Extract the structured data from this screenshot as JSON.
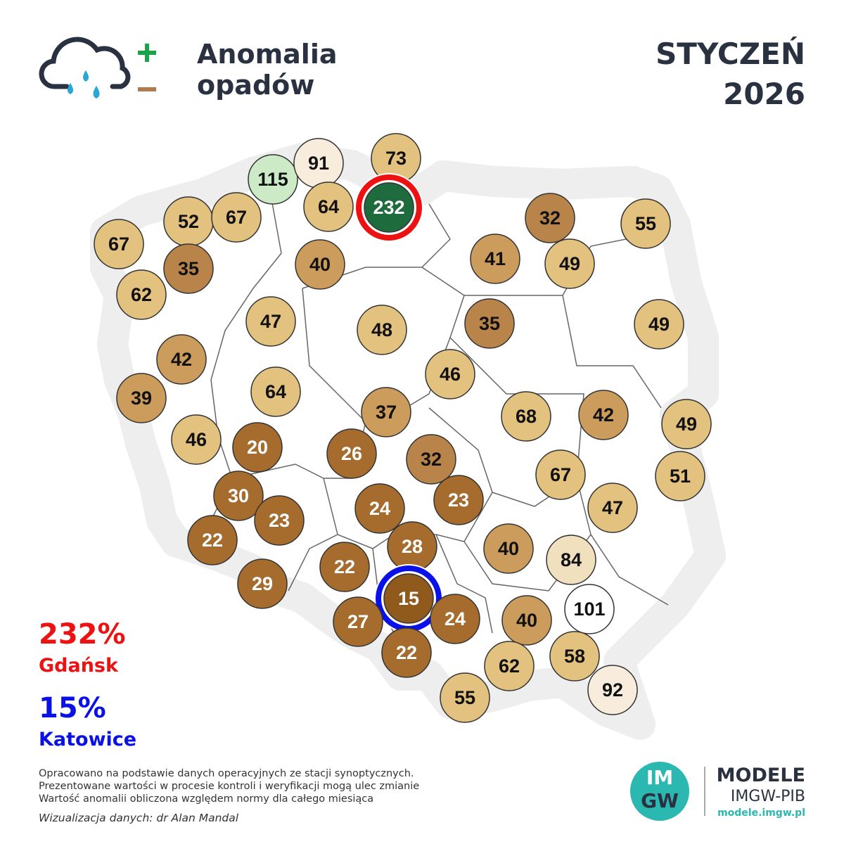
{
  "header": {
    "title_lines": [
      "Anomalia",
      "opadów"
    ],
    "month": "STYCZEŃ",
    "year": "2026"
  },
  "stations": [
    {
      "value": 115
    },
    {
      "value": 91
    },
    {
      "value": 73
    },
    {
      "value": 64
    },
    {
      "value": 232
    },
    {
      "value": 52
    },
    {
      "value": 67
    },
    {
      "value": 67
    },
    {
      "value": 35
    },
    {
      "value": 62
    },
    {
      "value": 40
    },
    {
      "value": 32
    },
    {
      "value": 55
    },
    {
      "value": 41
    },
    {
      "value": 49
    },
    {
      "value": 47
    },
    {
      "value": 48
    },
    {
      "value": 35
    },
    {
      "value": 49
    },
    {
      "value": 42
    },
    {
      "value": 46
    },
    {
      "value": 39
    },
    {
      "value": 64
    },
    {
      "value": 37
    },
    {
      "value": 68
    },
    {
      "value": 42
    },
    {
      "value": 49
    },
    {
      "value": 46
    },
    {
      "value": 20
    },
    {
      "value": 26
    },
    {
      "value": 32
    },
    {
      "value": 67
    },
    {
      "value": 51
    },
    {
      "value": 30
    },
    {
      "value": 23
    },
    {
      "value": 24
    },
    {
      "value": 23
    },
    {
      "value": 47
    },
    {
      "value": 22
    },
    {
      "value": 28
    },
    {
      "value": 40
    },
    {
      "value": 84
    },
    {
      "value": 22
    },
    {
      "value": 29
    },
    {
      "value": 15
    },
    {
      "value": 24
    },
    {
      "value": 27
    },
    {
      "value": 40
    },
    {
      "value": 101
    },
    {
      "value": 22
    },
    {
      "value": 62
    },
    {
      "value": 58
    },
    {
      "value": 92
    },
    {
      "value": 55
    }
  ],
  "highlights": [
    {
      "value": 232,
      "label": "232%",
      "city": "Gdańsk",
      "color": "#ee1111"
    },
    {
      "value": 15,
      "label": "15%",
      "city": "Katowice",
      "color": "#0a10e8"
    }
  ],
  "footer": {
    "notes": [
      "Opracowano na podstawie danych operacyjnych ze stacji synoptycznych.",
      "Prezentowane wartości w procesie kontroli i weryfikacji mogą ulec zmianie",
      "Wartość anomalii obliczona względem normy dla całego miesiąca"
    ],
    "credit": "Wizualizacja danych: dr Alan Mandal"
  },
  "logo": {
    "mark": [
      "IM",
      "GW"
    ],
    "brand": "MODELE",
    "org": "IMGW-PIB",
    "url": "modele.imgw.pl"
  }
}
